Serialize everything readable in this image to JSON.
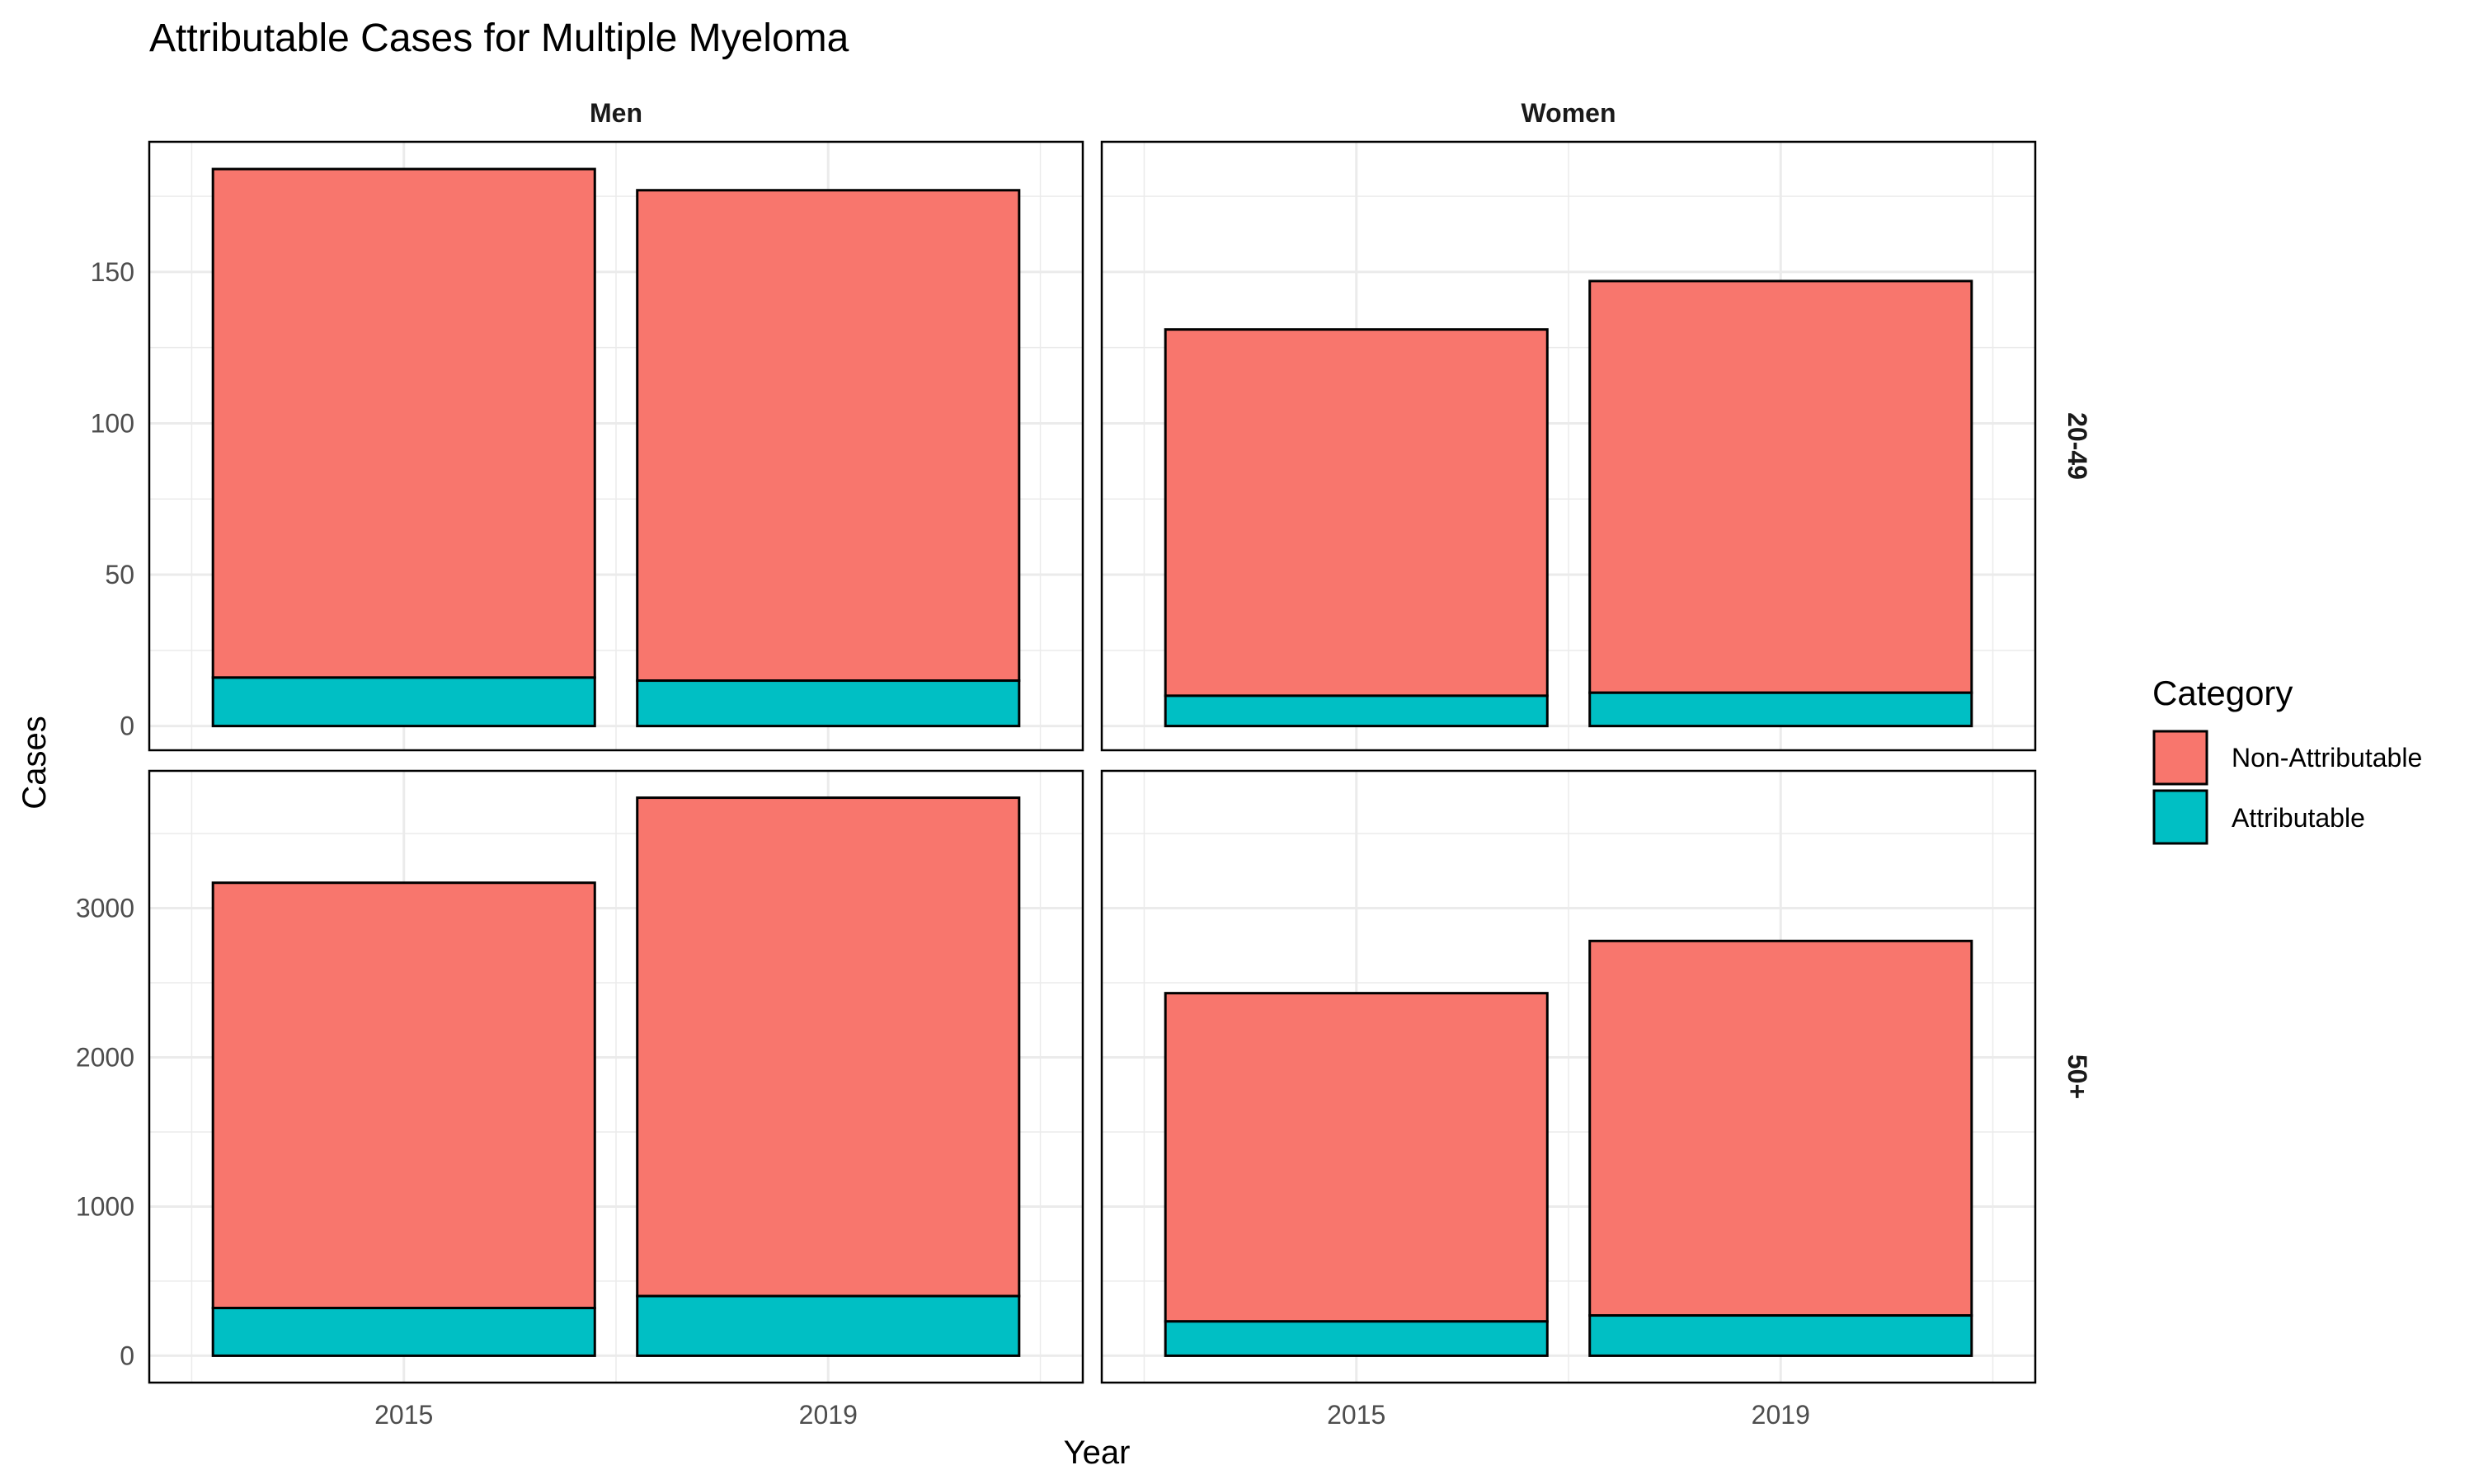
{
  "title": "Attributable Cases for Multiple Myeloma",
  "xlabel": "Year",
  "ylabel": "Cases",
  "legend": {
    "title": "Category",
    "items": [
      {
        "label": "Non-Attributable",
        "color": "#F8766D"
      },
      {
        "label": "Attributable",
        "color": "#00BFC4"
      }
    ]
  },
  "columns": [
    "Men",
    "Women"
  ],
  "rows": [
    "20-49",
    "50+"
  ],
  "chart_data": {
    "type": "bar",
    "stacked": true,
    "facet": {
      "columns": "sex",
      "rows": "age group"
    },
    "categories": [
      "2015",
      "2019"
    ],
    "series_order": [
      "Non-Attributable",
      "Attributable"
    ],
    "colors": {
      "Non-Attributable": "#F8766D",
      "Attributable": "#00BFC4"
    },
    "grid": true,
    "legend_position": "right",
    "y_scale": "free per row",
    "title": "Attributable Cases for Multiple Myeloma",
    "xlabel": "Year",
    "ylabel": "Cases",
    "panels": [
      {
        "column": "Men",
        "row": "20-49",
        "ylim": [
          -8,
          193
        ],
        "yticks": [
          0,
          50,
          100,
          150
        ],
        "values": {
          "Attributable": [
            16,
            15
          ],
          "Non-Attributable": [
            168,
            162
          ]
        }
      },
      {
        "column": "Women",
        "row": "20-49",
        "ylim": [
          -8,
          193
        ],
        "yticks": [
          0,
          50,
          100,
          150
        ],
        "values": {
          "Attributable": [
            10,
            11
          ],
          "Non-Attributable": [
            121,
            136
          ]
        }
      },
      {
        "column": "Men",
        "row": "50+",
        "ylim": [
          -180,
          3920
        ],
        "yticks": [
          0,
          1000,
          2000,
          3000
        ],
        "values": {
          "Attributable": [
            320,
            400
          ],
          "Non-Attributable": [
            2850,
            3340
          ]
        }
      },
      {
        "column": "Women",
        "row": "50+",
        "ylim": [
          -180,
          3920
        ],
        "yticks": [
          0,
          1000,
          2000,
          3000
        ],
        "values": {
          "Attributable": [
            230,
            270
          ],
          "Non-Attributable": [
            2200,
            2510
          ]
        }
      }
    ]
  }
}
